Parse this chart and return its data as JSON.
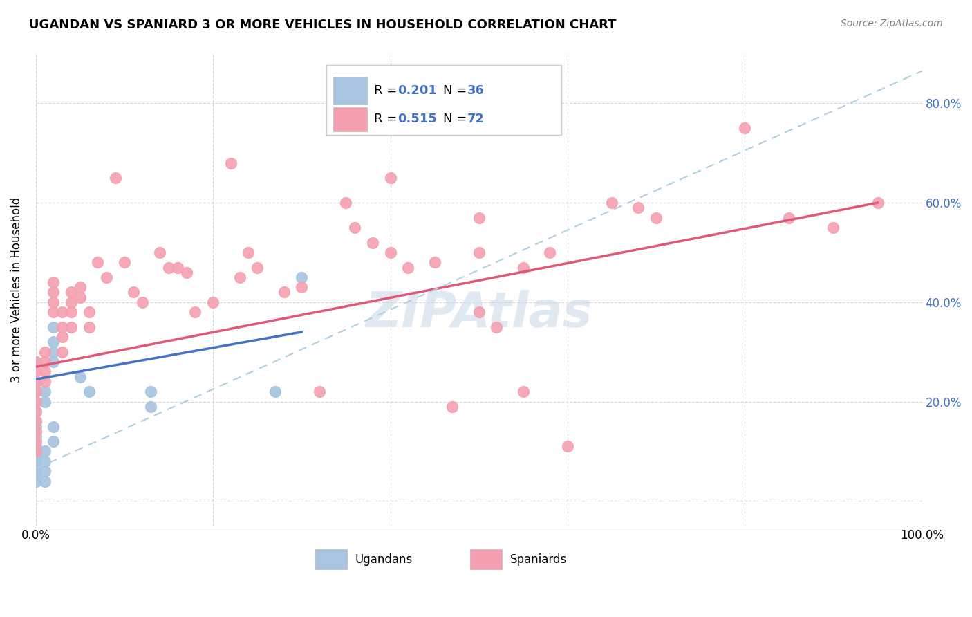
{
  "title": "UGANDAN VS SPANIARD 3 OR MORE VEHICLES IN HOUSEHOLD CORRELATION CHART",
  "source": "Source: ZipAtlas.com",
  "ylabel": "3 or more Vehicles in Household",
  "xlim": [
    0.0,
    1.0
  ],
  "ylim": [
    -0.05,
    0.9
  ],
  "x_tick_positions": [
    0.0,
    0.2,
    0.4,
    0.6,
    0.8,
    1.0
  ],
  "x_tick_labels": [
    "0.0%",
    "",
    "",
    "",
    "",
    "100.0%"
  ],
  "y_tick_positions": [
    0.0,
    0.2,
    0.4,
    0.6,
    0.8
  ],
  "y_tick_labels_right": [
    "",
    "20.0%",
    "40.0%",
    "60.0%",
    "80.0%"
  ],
  "ugandan_color": "#a8c4e0",
  "spaniard_color": "#f4a0b0",
  "ugandan_line_color": "#4472c4",
  "spaniard_line_color": "#e05878",
  "dashed_line_color": "#b0cfe0",
  "watermark_color": "#c8d8e8",
  "ugandan_points": [
    [
      0.0,
      0.28
    ],
    [
      0.0,
      0.24
    ],
    [
      0.0,
      0.22
    ],
    [
      0.0,
      0.2
    ],
    [
      0.0,
      0.18
    ],
    [
      0.0,
      0.16
    ],
    [
      0.0,
      0.15
    ],
    [
      0.0,
      0.14
    ],
    [
      0.0,
      0.13
    ],
    [
      0.0,
      0.12
    ],
    [
      0.0,
      0.11
    ],
    [
      0.0,
      0.1
    ],
    [
      0.0,
      0.09
    ],
    [
      0.0,
      0.08
    ],
    [
      0.0,
      0.07
    ],
    [
      0.0,
      0.06
    ],
    [
      0.0,
      0.05
    ],
    [
      0.0,
      0.04
    ],
    [
      0.01,
      0.1
    ],
    [
      0.01,
      0.08
    ],
    [
      0.01,
      0.06
    ],
    [
      0.01,
      0.04
    ],
    [
      0.01,
      0.22
    ],
    [
      0.01,
      0.2
    ],
    [
      0.02,
      0.15
    ],
    [
      0.02,
      0.12
    ],
    [
      0.02,
      0.35
    ],
    [
      0.02,
      0.32
    ],
    [
      0.02,
      0.3
    ],
    [
      0.02,
      0.28
    ],
    [
      0.05,
      0.25
    ],
    [
      0.06,
      0.22
    ],
    [
      0.13,
      0.22
    ],
    [
      0.13,
      0.19
    ],
    [
      0.27,
      0.22
    ],
    [
      0.3,
      0.45
    ]
  ],
  "spaniard_points": [
    [
      0.0,
      0.28
    ],
    [
      0.0,
      0.26
    ],
    [
      0.0,
      0.24
    ],
    [
      0.0,
      0.22
    ],
    [
      0.0,
      0.2
    ],
    [
      0.0,
      0.18
    ],
    [
      0.0,
      0.16
    ],
    [
      0.0,
      0.14
    ],
    [
      0.0,
      0.12
    ],
    [
      0.0,
      0.1
    ],
    [
      0.01,
      0.3
    ],
    [
      0.01,
      0.28
    ],
    [
      0.01,
      0.26
    ],
    [
      0.01,
      0.24
    ],
    [
      0.02,
      0.44
    ],
    [
      0.02,
      0.42
    ],
    [
      0.02,
      0.4
    ],
    [
      0.02,
      0.38
    ],
    [
      0.03,
      0.38
    ],
    [
      0.03,
      0.35
    ],
    [
      0.03,
      0.33
    ],
    [
      0.03,
      0.3
    ],
    [
      0.04,
      0.42
    ],
    [
      0.04,
      0.4
    ],
    [
      0.04,
      0.38
    ],
    [
      0.04,
      0.35
    ],
    [
      0.05,
      0.43
    ],
    [
      0.05,
      0.41
    ],
    [
      0.06,
      0.38
    ],
    [
      0.06,
      0.35
    ],
    [
      0.07,
      0.48
    ],
    [
      0.08,
      0.45
    ],
    [
      0.09,
      0.65
    ],
    [
      0.1,
      0.48
    ],
    [
      0.11,
      0.42
    ],
    [
      0.12,
      0.4
    ],
    [
      0.14,
      0.5
    ],
    [
      0.15,
      0.47
    ],
    [
      0.16,
      0.47
    ],
    [
      0.17,
      0.46
    ],
    [
      0.18,
      0.38
    ],
    [
      0.2,
      0.4
    ],
    [
      0.22,
      0.68
    ],
    [
      0.23,
      0.45
    ],
    [
      0.24,
      0.5
    ],
    [
      0.25,
      0.47
    ],
    [
      0.28,
      0.42
    ],
    [
      0.3,
      0.43
    ],
    [
      0.32,
      0.22
    ],
    [
      0.35,
      0.6
    ],
    [
      0.36,
      0.55
    ],
    [
      0.38,
      0.52
    ],
    [
      0.4,
      0.65
    ],
    [
      0.4,
      0.5
    ],
    [
      0.42,
      0.47
    ],
    [
      0.45,
      0.48
    ],
    [
      0.47,
      0.19
    ],
    [
      0.5,
      0.5
    ],
    [
      0.5,
      0.38
    ],
    [
      0.5,
      0.57
    ],
    [
      0.52,
      0.35
    ],
    [
      0.55,
      0.22
    ],
    [
      0.55,
      0.47
    ],
    [
      0.58,
      0.5
    ],
    [
      0.6,
      0.11
    ],
    [
      0.65,
      0.6
    ],
    [
      0.68,
      0.59
    ],
    [
      0.7,
      0.57
    ],
    [
      0.8,
      0.75
    ],
    [
      0.85,
      0.57
    ],
    [
      0.9,
      0.55
    ],
    [
      0.95,
      0.6
    ]
  ],
  "ugandan_trendline": [
    [
      0.0,
      0.245
    ],
    [
      0.3,
      0.34
    ]
  ],
  "spaniard_trendline": [
    [
      0.0,
      0.27
    ],
    [
      0.95,
      0.6
    ]
  ],
  "dashed_trendline": [
    [
      0.0,
      0.065
    ],
    [
      1.0,
      0.865
    ]
  ]
}
